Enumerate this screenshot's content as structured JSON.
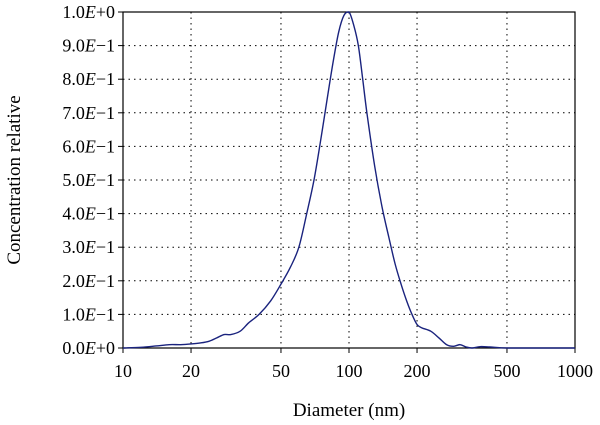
{
  "chart_data": {
    "type": "line",
    "xlabel": "Diameter (nm)",
    "ylabel": "Concentration relative",
    "x_scale": "log",
    "xlim": [
      10,
      1000
    ],
    "ylim": [
      0,
      1
    ],
    "x_ticks": [
      {
        "value": 10,
        "label": "10"
      },
      {
        "value": 20,
        "label": "20"
      },
      {
        "value": 50,
        "label": "50"
      },
      {
        "value": 100,
        "label": "100"
      },
      {
        "value": 200,
        "label": "200"
      },
      {
        "value": 500,
        "label": "500"
      },
      {
        "value": 1000,
        "label": "1000"
      }
    ],
    "y_ticks": [
      {
        "value": 0.0,
        "mant": "0.0",
        "exp": "+0"
      },
      {
        "value": 0.1,
        "mant": "1.0",
        "exp": "−1"
      },
      {
        "value": 0.2,
        "mant": "2.0",
        "exp": "−1"
      },
      {
        "value": 0.3,
        "mant": "3.0",
        "exp": "−1"
      },
      {
        "value": 0.4,
        "mant": "4.0",
        "exp": "−1"
      },
      {
        "value": 0.5,
        "mant": "5.0",
        "exp": "−1"
      },
      {
        "value": 0.6,
        "mant": "6.0",
        "exp": "−1"
      },
      {
        "value": 0.7,
        "mant": "7.0",
        "exp": "−1"
      },
      {
        "value": 0.8,
        "mant": "8.0",
        "exp": "−1"
      },
      {
        "value": 0.9,
        "mant": "9.0",
        "exp": "−1"
      },
      {
        "value": 1.0,
        "mant": "1.0",
        "exp": "+0"
      }
    ],
    "grid": true,
    "grid_style": "dotted",
    "line_color": "#1a237e",
    "series": [
      {
        "x": [
          10,
          12,
          14,
          16,
          18,
          20,
          22,
          24,
          26,
          28,
          30,
          33,
          36,
          40,
          45,
          50,
          55,
          60,
          65,
          70,
          75,
          80,
          85,
          90,
          95,
          100,
          105,
          110,
          115,
          120,
          130,
          140,
          150,
          160,
          170,
          180,
          190,
          200,
          210,
          230,
          250,
          270,
          290,
          310,
          330,
          350,
          380,
          420,
          500,
          700,
          1000
        ],
        "y": [
          0.0,
          0.002,
          0.006,
          0.01,
          0.01,
          0.012,
          0.015,
          0.02,
          0.03,
          0.04,
          0.04,
          0.05,
          0.075,
          0.1,
          0.14,
          0.19,
          0.24,
          0.3,
          0.4,
          0.5,
          0.62,
          0.74,
          0.85,
          0.94,
          0.99,
          1.0,
          0.96,
          0.9,
          0.8,
          0.7,
          0.54,
          0.42,
          0.33,
          0.25,
          0.19,
          0.14,
          0.1,
          0.07,
          0.06,
          0.05,
          0.03,
          0.01,
          0.005,
          0.01,
          0.003,
          0.0,
          0.004,
          0.003,
          0.0,
          0.0,
          0.0
        ]
      }
    ]
  }
}
